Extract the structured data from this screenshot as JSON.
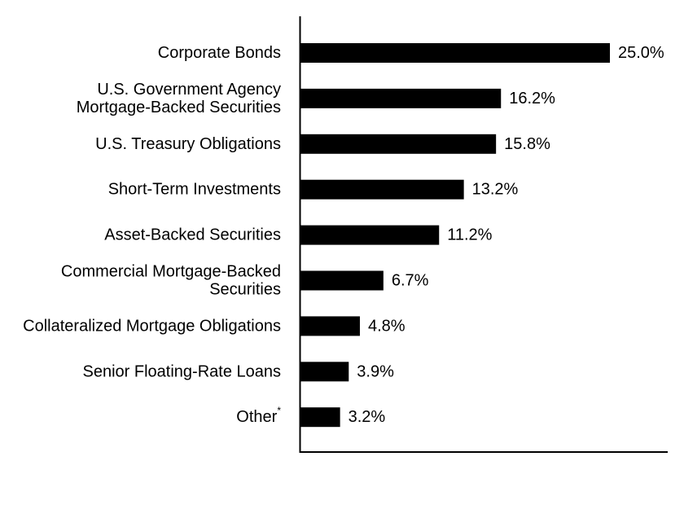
{
  "chart_data": {
    "type": "bar",
    "orientation": "horizontal",
    "categories": [
      "Corporate Bonds",
      "U.S. Government Agency Mortgage-Backed Securities",
      "U.S. Treasury Obligations",
      "Short-Term Investments",
      "Asset-Backed Securities",
      "Commercial Mortgage-Backed Securities",
      "Collateralized Mortgage Obligations",
      "Senior Floating-Rate Loans",
      "Other"
    ],
    "label_lines": [
      [
        "Corporate Bonds"
      ],
      [
        "U.S. Government Agency",
        "Mortgage-Backed Securities"
      ],
      [
        "U.S. Treasury Obligations"
      ],
      [
        "Short-Term Investments"
      ],
      [
        "Asset-Backed Securities"
      ],
      [
        "Commercial Mortgage-Backed",
        "Securities"
      ],
      [
        "Collateralized Mortgage Obligations"
      ],
      [
        "Senior Floating-Rate Loans"
      ],
      [
        "Other"
      ]
    ],
    "footnote_marks": [
      "",
      "",
      "",
      "",
      "",
      "",
      "",
      "",
      "*"
    ],
    "values": [
      25.0,
      16.2,
      15.8,
      13.2,
      11.2,
      6.7,
      4.8,
      3.9,
      3.2
    ],
    "value_labels": [
      "25.0%",
      "16.2%",
      "15.8%",
      "13.2%",
      "11.2%",
      "6.7%",
      "4.8%",
      "3.9%",
      "3.2%"
    ],
    "xlim": [
      0,
      30
    ],
    "grid": false,
    "bar_color": "#000000",
    "title": "",
    "xlabel": "",
    "ylabel": ""
  }
}
